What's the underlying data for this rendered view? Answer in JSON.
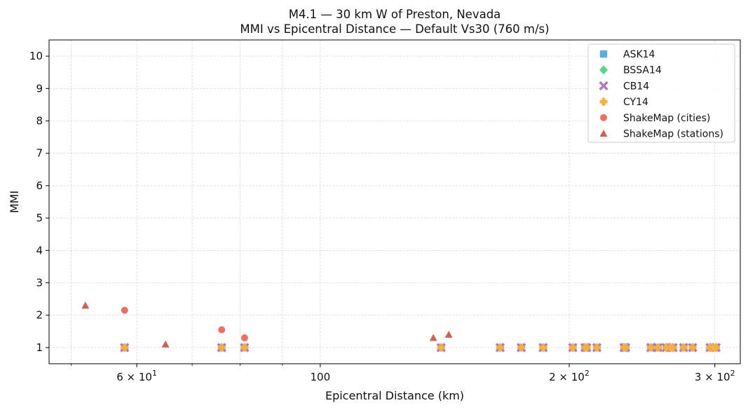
{
  "chart_data": {
    "type": "scatter",
    "title": "M4.1 — 30 km W of Preston, Nevada",
    "subtitle": "MMI vs Epicentral Distance — Default Vs30 (760 m/s)",
    "xlabel": "Epicentral Distance (km)",
    "ylabel": "MMI",
    "xscale": "log",
    "xlim": [
      47,
      322
    ],
    "ylim": [
      0.5,
      10.5
    ],
    "grid": true,
    "legend_position": "top-right",
    "x_ticks": [
      {
        "value": 60,
        "label": "6 × 10",
        "exp": "1"
      },
      {
        "value": 100,
        "label": "100",
        "exp": ""
      },
      {
        "value": 200,
        "label": "2 × 10",
        "exp": "2"
      },
      {
        "value": 300,
        "label": "3 × 10",
        "exp": "2"
      }
    ],
    "x_minor_ticks": [
      50,
      70,
      80,
      90
    ],
    "y_ticks": [
      1,
      2,
      3,
      4,
      5,
      6,
      7,
      8,
      9,
      10
    ],
    "model_distances": [
      58,
      76,
      81,
      140,
      165,
      175,
      186,
      202,
      209,
      210,
      216,
      233,
      234,
      251,
      256,
      262,
      265,
      267,
      275,
      282,
      296,
      299,
      301
    ],
    "series": [
      {
        "name": "ASK14",
        "marker": "square",
        "color": "#5DADE2",
        "x": "model_distances",
        "y_const": 1.0
      },
      {
        "name": "BSSA14",
        "marker": "diamond",
        "color": "#58D68D",
        "x": "model_distances",
        "y_const": 1.0
      },
      {
        "name": "CB14",
        "marker": "x",
        "color": "#AF7AC5",
        "x": "model_distances",
        "y_const": 1.0
      },
      {
        "name": "CY14",
        "marker": "plus",
        "color": "#F5B041",
        "x": "model_distances",
        "y_const": 1.0
      },
      {
        "name": "ShakeMap (cities)",
        "marker": "circle",
        "color": "#EC7063",
        "points": [
          [
            58,
            2.15
          ],
          [
            76,
            1.55
          ],
          [
            81,
            1.3
          ]
        ]
      },
      {
        "name": "ShakeMap (stations)",
        "marker": "triangle",
        "color": "#CD6155",
        "points": [
          [
            52,
            2.3
          ],
          [
            65,
            1.1
          ],
          [
            137,
            1.3
          ],
          [
            143,
            1.4
          ]
        ]
      }
    ]
  }
}
